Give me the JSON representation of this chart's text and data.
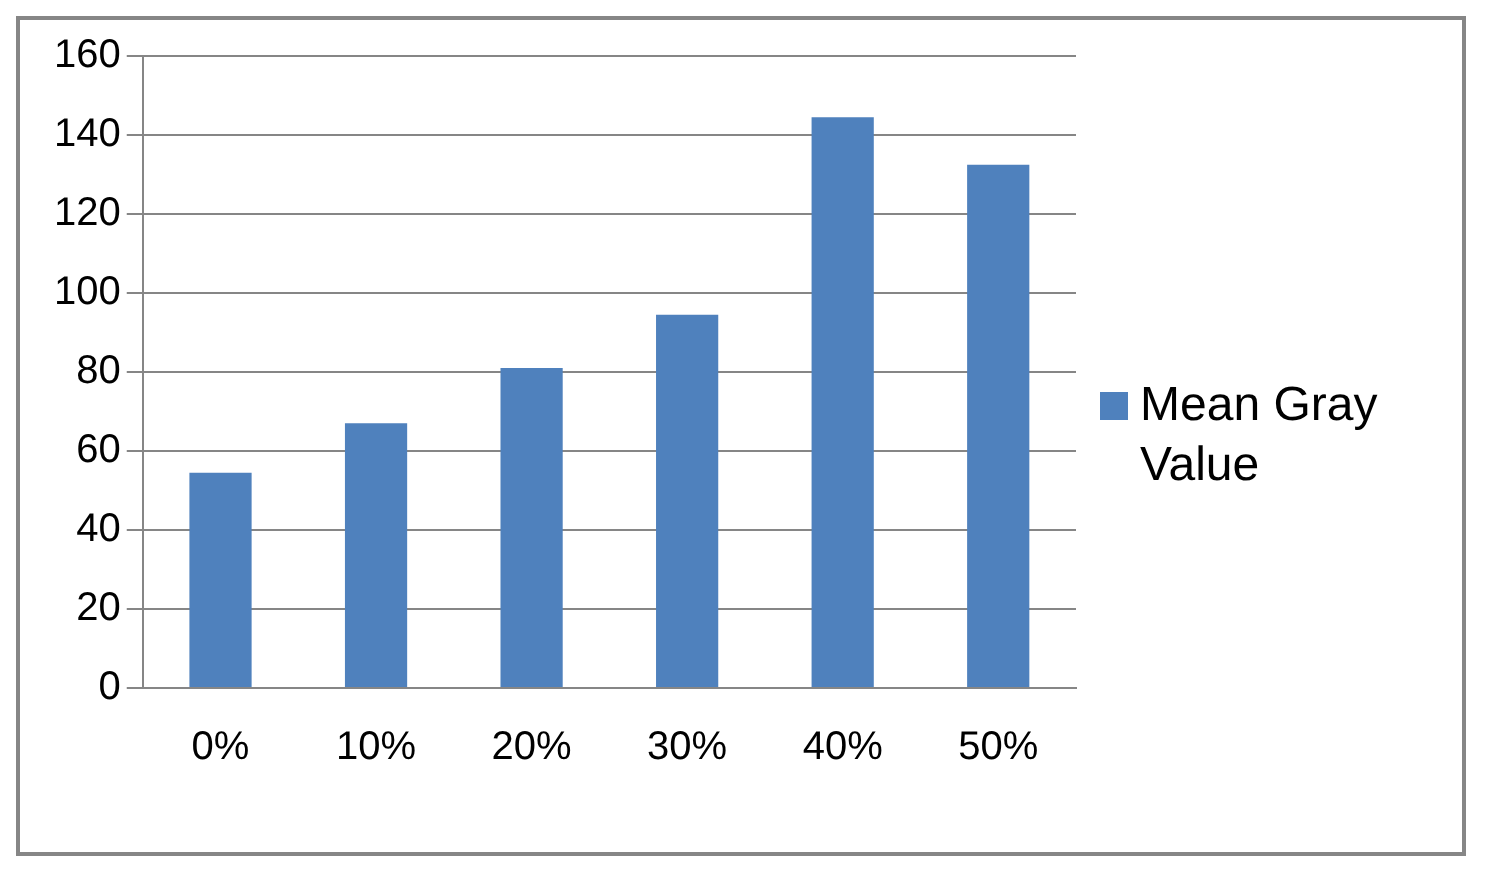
{
  "chart_data": {
    "type": "bar",
    "categories": [
      "0%",
      "10%",
      "20%",
      "30%",
      "40%",
      "50%"
    ],
    "series": [
      {
        "name": "Mean Gray Value",
        "color": "#4f81bd",
        "values": [
          54.5,
          67,
          81,
          94.5,
          144.5,
          132.5
        ]
      }
    ],
    "ylim": [
      0,
      160
    ],
    "yticks": [
      0,
      20,
      40,
      60,
      80,
      100,
      120,
      140,
      160
    ],
    "grid": "y",
    "legend": "right"
  }
}
